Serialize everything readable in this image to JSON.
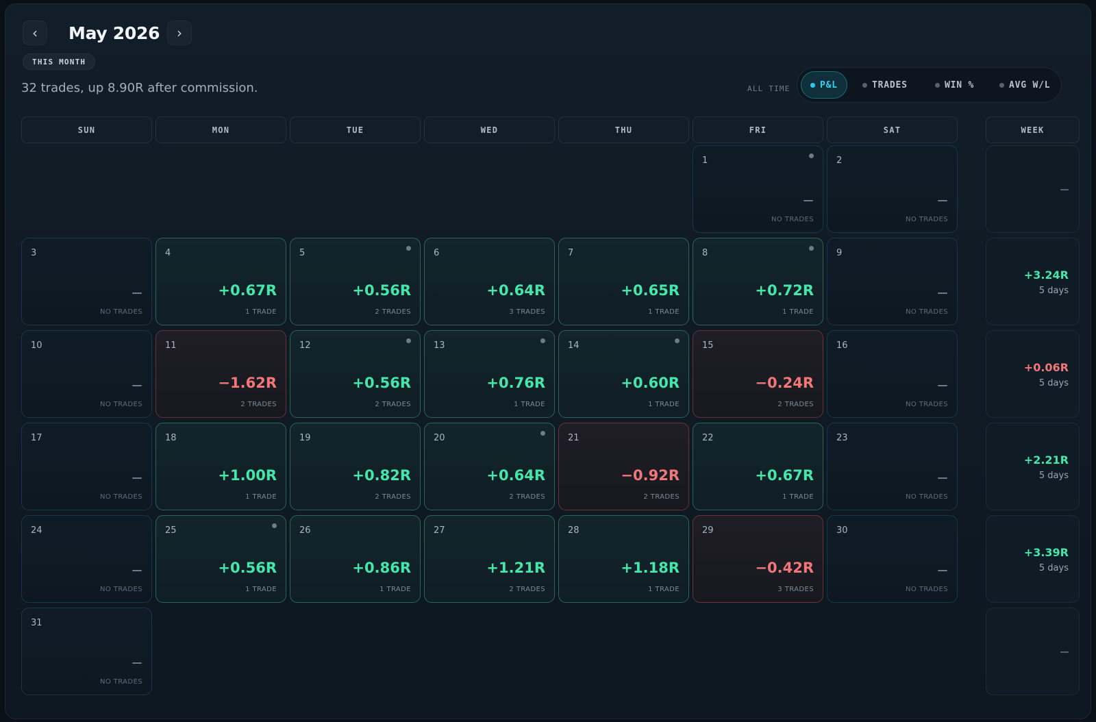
{
  "header": {
    "title": "May 2026",
    "prev_icon": "chevron-left-icon",
    "next_icon": "chevron-right-icon",
    "prev_glyph": "‹",
    "next_glyph": "›",
    "badge": "THIS MONTH",
    "summary": "32 trades, up 8.90R after commission."
  },
  "metrics": {
    "label": "ALL TIME",
    "options": [
      "P&L",
      "TRADES",
      "WIN %",
      "AVG W/L"
    ],
    "active": "P&L"
  },
  "weekdays": [
    "SUN",
    "MON",
    "TUE",
    "WED",
    "THU",
    "FRI",
    "SAT",
    "WEEK"
  ],
  "colors": {
    "positive": "#46e6aa",
    "negative": "#f07679",
    "accent": "#2fc8ea"
  },
  "days": [
    {
      "day": "1",
      "value": "",
      "sub": "NO TRADES",
      "tone": "empty",
      "marker": true
    },
    {
      "day": "2",
      "value": "",
      "sub": "NO TRADES",
      "tone": "empty",
      "marker": false
    },
    {
      "day": "3",
      "value": "",
      "sub": "NO TRADES",
      "tone": "empty",
      "marker": false
    },
    {
      "day": "4",
      "value": "+0.67R",
      "sub": "1 TRADE",
      "tone": "pos",
      "marker": false
    },
    {
      "day": "5",
      "value": "+0.56R",
      "sub": "2 TRADES",
      "tone": "pos",
      "marker": true
    },
    {
      "day": "6",
      "value": "+0.64R",
      "sub": "3 TRADES",
      "tone": "pos",
      "marker": false
    },
    {
      "day": "7",
      "value": "+0.65R",
      "sub": "1 TRADE",
      "tone": "pos",
      "marker": false
    },
    {
      "day": "8",
      "value": "+0.72R",
      "sub": "1 TRADE",
      "tone": "pos",
      "marker": true
    },
    {
      "day": "9",
      "value": "",
      "sub": "NO TRADES",
      "tone": "empty",
      "marker": false
    },
    {
      "day": "10",
      "value": "",
      "sub": "NO TRADES",
      "tone": "empty",
      "marker": false
    },
    {
      "day": "11",
      "value": "−1.62R",
      "sub": "2 TRADES",
      "tone": "neg",
      "marker": false
    },
    {
      "day": "12",
      "value": "+0.56R",
      "sub": "2 TRADES",
      "tone": "pos",
      "marker": true
    },
    {
      "day": "13",
      "value": "+0.76R",
      "sub": "1 TRADE",
      "tone": "pos",
      "marker": true
    },
    {
      "day": "14",
      "value": "+0.60R",
      "sub": "1 TRADE",
      "tone": "pos",
      "marker": true
    },
    {
      "day": "15",
      "value": "−0.24R",
      "sub": "2 TRADES",
      "tone": "neg",
      "marker": false
    },
    {
      "day": "16",
      "value": "",
      "sub": "NO TRADES",
      "tone": "empty",
      "marker": false
    },
    {
      "day": "17",
      "value": "",
      "sub": "NO TRADES",
      "tone": "empty",
      "marker": false
    },
    {
      "day": "18",
      "value": "+1.00R",
      "sub": "1 TRADE",
      "tone": "pos",
      "marker": false
    },
    {
      "day": "19",
      "value": "+0.82R",
      "sub": "2 TRADES",
      "tone": "pos",
      "marker": false
    },
    {
      "day": "20",
      "value": "+0.64R",
      "sub": "2 TRADES",
      "tone": "pos",
      "marker": true
    },
    {
      "day": "21",
      "value": "−0.92R",
      "sub": "2 TRADES",
      "tone": "neg",
      "marker": false
    },
    {
      "day": "22",
      "value": "+0.67R",
      "sub": "1 TRADE",
      "tone": "pos",
      "marker": false
    },
    {
      "day": "23",
      "value": "",
      "sub": "NO TRADES",
      "tone": "empty",
      "marker": false
    },
    {
      "day": "24",
      "value": "",
      "sub": "NO TRADES",
      "tone": "empty",
      "marker": false
    },
    {
      "day": "25",
      "value": "+0.56R",
      "sub": "1 TRADE",
      "tone": "pos",
      "marker": true
    },
    {
      "day": "26",
      "value": "+0.86R",
      "sub": "1 TRADE",
      "tone": "pos",
      "marker": false
    },
    {
      "day": "27",
      "value": "+1.21R",
      "sub": "2 TRADES",
      "tone": "pos",
      "marker": false
    },
    {
      "day": "28",
      "value": "+1.18R",
      "sub": "1 TRADE",
      "tone": "pos",
      "marker": false
    },
    {
      "day": "29",
      "value": "−0.42R",
      "sub": "3 TRADES",
      "tone": "neg",
      "marker": false
    },
    {
      "day": "30",
      "value": "",
      "sub": "NO TRADES",
      "tone": "empty",
      "marker": false
    },
    {
      "day": "31",
      "value": "",
      "sub": "NO TRADES",
      "tone": "empty",
      "marker": false
    }
  ],
  "weeks": [
    {
      "value": "",
      "sub": "",
      "tone": "none"
    },
    {
      "value": "+3.24R",
      "sub": "5 days",
      "tone": "pos"
    },
    {
      "value": "+0.06R",
      "sub": "5 days",
      "tone": "neg"
    },
    {
      "value": "+2.21R",
      "sub": "5 days",
      "tone": "pos"
    },
    {
      "value": "+3.39R",
      "sub": "5 days",
      "tone": "pos"
    },
    {
      "value": "",
      "sub": "",
      "tone": "none"
    }
  ]
}
